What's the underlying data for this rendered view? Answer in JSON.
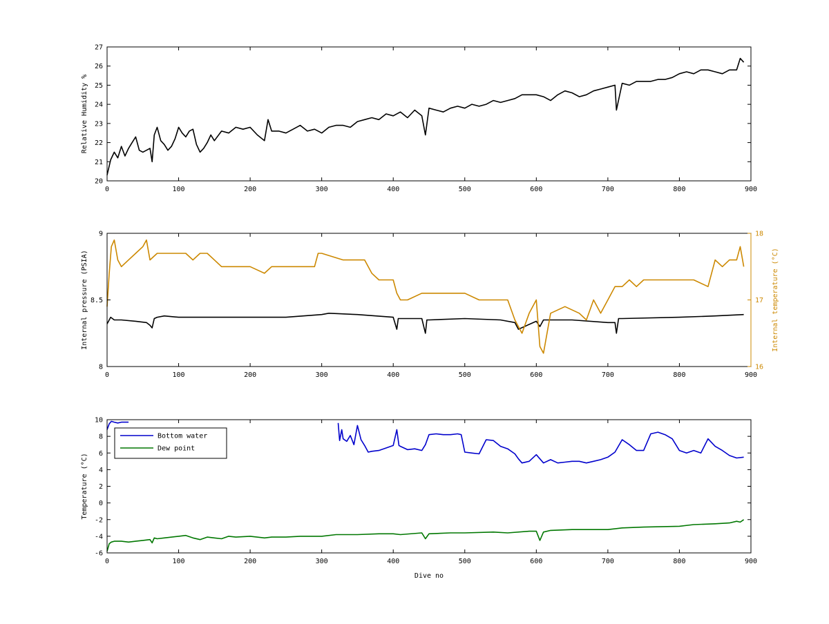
{
  "colors": {
    "black": "#000000",
    "orange": "#cc8800",
    "blue": "#0000cc",
    "green": "#007700"
  },
  "chart_data": [
    {
      "type": "line",
      "ylabel": "Relative Humidity %",
      "xlabel": "",
      "xlim": [
        0,
        900
      ],
      "ylim": [
        20,
        27
      ],
      "xticks": [
        "0",
        "100",
        "200",
        "300",
        "400",
        "500",
        "600",
        "700",
        "800",
        "900"
      ],
      "yticks": [
        "20",
        "21",
        "22",
        "23",
        "24",
        "25",
        "26",
        "27"
      ],
      "grid": false,
      "series": [
        {
          "color": "#000000",
          "x": [
            0,
            5,
            10,
            15,
            20,
            25,
            30,
            35,
            40,
            45,
            50,
            55,
            60,
            63,
            66,
            70,
            75,
            80,
            85,
            90,
            95,
            100,
            105,
            110,
            115,
            120,
            125,
            130,
            135,
            140,
            145,
            150,
            160,
            170,
            180,
            190,
            200,
            210,
            220,
            225,
            230,
            240,
            250,
            260,
            270,
            280,
            290,
            300,
            310,
            320,
            330,
            340,
            350,
            360,
            370,
            380,
            390,
            400,
            410,
            420,
            430,
            440,
            445,
            450,
            460,
            470,
            480,
            490,
            500,
            510,
            520,
            530,
            540,
            550,
            560,
            570,
            580,
            590,
            600,
            610,
            620,
            630,
            640,
            650,
            660,
            670,
            680,
            690,
            700,
            710,
            712,
            720,
            730,
            740,
            750,
            760,
            770,
            780,
            790,
            800,
            810,
            820,
            830,
            840,
            850,
            860,
            870,
            880,
            885,
            890
          ],
          "values": [
            20.3,
            21.1,
            21.5,
            21.2,
            21.8,
            21.3,
            21.7,
            22.0,
            22.3,
            21.6,
            21.5,
            21.6,
            21.7,
            21.0,
            22.4,
            22.8,
            22.1,
            21.9,
            21.6,
            21.8,
            22.2,
            22.8,
            22.5,
            22.3,
            22.6,
            22.7,
            21.9,
            21.5,
            21.7,
            22.0,
            22.4,
            22.1,
            22.6,
            22.5,
            22.8,
            22.7,
            22.8,
            22.4,
            22.1,
            23.2,
            22.6,
            22.6,
            22.5,
            22.7,
            22.9,
            22.6,
            22.7,
            22.5,
            22.8,
            22.9,
            22.9,
            22.8,
            23.1,
            23.2,
            23.3,
            23.2,
            23.5,
            23.4,
            23.6,
            23.3,
            23.7,
            23.4,
            22.4,
            23.8,
            23.7,
            23.6,
            23.8,
            23.9,
            23.8,
            24.0,
            23.9,
            24.0,
            24.2,
            24.1,
            24.2,
            24.3,
            24.5,
            24.5,
            24.5,
            24.4,
            24.2,
            24.5,
            24.7,
            24.6,
            24.4,
            24.5,
            24.7,
            24.8,
            24.9,
            25.0,
            23.7,
            25.1,
            25.0,
            25.2,
            25.2,
            25.2,
            25.3,
            25.3,
            25.4,
            25.6,
            25.7,
            25.6,
            25.8,
            25.8,
            25.7,
            25.6,
            25.8,
            25.8,
            26.4,
            26.2
          ]
        }
      ]
    },
    {
      "type": "line",
      "ylabel": "Internal pressure (PSIA)",
      "y2label": "Internal temperature (°C)",
      "xlabel": "",
      "xlim": [
        0,
        900
      ],
      "ylim": [
        8,
        9
      ],
      "y2lim": [
        16,
        18
      ],
      "xticks": [
        "0",
        "100",
        "200",
        "300",
        "400",
        "500",
        "600",
        "700",
        "800",
        "900"
      ],
      "yticks": [
        "8",
        "8.5",
        "9"
      ],
      "y2ticks": [
        "16",
        "17",
        "18"
      ],
      "grid": false,
      "series": [
        {
          "axis": "left",
          "color": "#000000",
          "x": [
            0,
            5,
            10,
            20,
            40,
            55,
            60,
            63,
            66,
            70,
            80,
            100,
            150,
            200,
            250,
            300,
            310,
            350,
            400,
            405,
            407,
            410,
            440,
            445,
            447,
            450,
            500,
            550,
            570,
            575,
            600,
            605,
            610,
            620,
            650,
            700,
            710,
            712,
            715,
            720,
            800,
            850,
            890
          ],
          "values": [
            8.32,
            8.37,
            8.35,
            8.35,
            8.34,
            8.33,
            8.31,
            8.29,
            8.36,
            8.37,
            8.38,
            8.37,
            8.37,
            8.37,
            8.37,
            8.39,
            8.4,
            8.39,
            8.37,
            8.28,
            8.36,
            8.36,
            8.36,
            8.25,
            8.35,
            8.35,
            8.36,
            8.35,
            8.33,
            8.28,
            8.34,
            8.3,
            8.35,
            8.35,
            8.35,
            8.33,
            8.33,
            8.25,
            8.36,
            8.36,
            8.37,
            8.38,
            8.39
          ]
        },
        {
          "axis": "right",
          "color": "#cc8800",
          "x": [
            0,
            3,
            6,
            10,
            15,
            20,
            30,
            40,
            50,
            55,
            60,
            70,
            80,
            100,
            110,
            120,
            130,
            140,
            150,
            160,
            170,
            180,
            200,
            220,
            230,
            250,
            260,
            270,
            280,
            290,
            295,
            300,
            330,
            350,
            360,
            370,
            380,
            390,
            400,
            405,
            410,
            420,
            440,
            460,
            480,
            500,
            520,
            540,
            560,
            570,
            575,
            580,
            590,
            600,
            605,
            610,
            620,
            640,
            660,
            670,
            680,
            690,
            700,
            710,
            720,
            730,
            740,
            750,
            760,
            780,
            800,
            820,
            840,
            850,
            860,
            870,
            880,
            885,
            890
          ],
          "values": [
            16.9,
            17.4,
            17.8,
            17.9,
            17.6,
            17.5,
            17.6,
            17.7,
            17.8,
            17.9,
            17.6,
            17.7,
            17.7,
            17.7,
            17.7,
            17.6,
            17.7,
            17.7,
            17.6,
            17.5,
            17.5,
            17.5,
            17.5,
            17.4,
            17.5,
            17.5,
            17.5,
            17.5,
            17.5,
            17.5,
            17.7,
            17.7,
            17.6,
            17.6,
            17.6,
            17.4,
            17.3,
            17.3,
            17.3,
            17.1,
            17.0,
            17.0,
            17.1,
            17.1,
            17.1,
            17.1,
            17.0,
            17.0,
            17.0,
            16.7,
            16.6,
            16.5,
            16.8,
            17.0,
            16.3,
            16.2,
            16.8,
            16.9,
            16.8,
            16.7,
            17.0,
            16.8,
            17.0,
            17.2,
            17.2,
            17.3,
            17.2,
            17.3,
            17.3,
            17.3,
            17.3,
            17.3,
            17.2,
            17.6,
            17.5,
            17.6,
            17.6,
            17.8,
            17.5
          ]
        }
      ]
    },
    {
      "type": "line",
      "ylabel": "Temperature (°C)",
      "xlabel": "Dive no",
      "xlim": [
        0,
        900
      ],
      "ylim": [
        -6,
        10
      ],
      "xticks": [
        "0",
        "100",
        "200",
        "300",
        "400",
        "500",
        "600",
        "700",
        "800",
        "900"
      ],
      "yticks": [
        "-6",
        "-4",
        "-2",
        "0",
        "2",
        "4",
        "6",
        "8",
        "10"
      ],
      "grid": false,
      "legend": "top-left",
      "series": [
        {
          "name": "Bottom water",
          "color": "#0000cc",
          "x": [
            0,
            3,
            6,
            10,
            15,
            20,
            25,
            30
          ],
          "values": [
            8.8,
            9.5,
            9.8,
            9.7,
            9.6,
            9.7,
            9.7,
            9.7
          ]
        },
        {
          "name": "Bottom water",
          "color": "#0000cc",
          "x": [
            323,
            325,
            328,
            330,
            335,
            340,
            345,
            350,
            355,
            360,
            365,
            370,
            380,
            390,
            400,
            405,
            408,
            410,
            420,
            430,
            440,
            445,
            450,
            460,
            470,
            480,
            490,
            495,
            500,
            510,
            520,
            530,
            540,
            550,
            560,
            570,
            575,
            580,
            590,
            600,
            610,
            620,
            630,
            640,
            650,
            660,
            670,
            680,
            690,
            700,
            710,
            720,
            730,
            740,
            750,
            760,
            770,
            780,
            790,
            800,
            810,
            820,
            830,
            840,
            850,
            860,
            870,
            880,
            890
          ],
          "values": [
            9.6,
            7.5,
            8.8,
            7.7,
            7.4,
            8.1,
            7.0,
            9.3,
            7.6,
            6.9,
            6.1,
            6.2,
            6.3,
            6.6,
            6.9,
            8.8,
            6.9,
            6.8,
            6.4,
            6.5,
            6.3,
            7.0,
            8.2,
            8.3,
            8.2,
            8.2,
            8.3,
            8.2,
            6.1,
            6.0,
            5.9,
            7.6,
            7.5,
            6.8,
            6.5,
            5.9,
            5.3,
            4.8,
            5.0,
            5.8,
            4.8,
            5.2,
            4.8,
            4.9,
            5.0,
            5.0,
            4.8,
            5.0,
            5.2,
            5.5,
            6.1,
            7.6,
            7.0,
            6.3,
            6.3,
            8.3,
            8.5,
            8.2,
            7.7,
            6.3,
            6.0,
            6.3,
            6.0,
            7.7,
            6.8,
            6.3,
            5.7,
            5.4,
            5.5
          ]
        },
        {
          "name": "Dew point",
          "color": "#007700",
          "x": [
            0,
            3,
            6,
            10,
            20,
            30,
            40,
            50,
            60,
            63,
            66,
            70,
            80,
            100,
            110,
            120,
            130,
            140,
            150,
            160,
            170,
            180,
            200,
            220,
            230,
            250,
            270,
            300,
            320,
            350,
            380,
            400,
            410,
            440,
            445,
            450,
            480,
            500,
            540,
            560,
            590,
            600,
            605,
            610,
            620,
            650,
            700,
            720,
            750,
            800,
            820,
            850,
            870,
            880,
            885,
            890
          ],
          "values": [
            -5.8,
            -4.9,
            -4.7,
            -4.6,
            -4.6,
            -4.7,
            -4.6,
            -4.5,
            -4.4,
            -4.8,
            -4.2,
            -4.3,
            -4.2,
            -4.0,
            -3.9,
            -4.2,
            -4.4,
            -4.1,
            -4.2,
            -4.3,
            -4.0,
            -4.1,
            -4.0,
            -4.2,
            -4.1,
            -4.1,
            -4.0,
            -4.0,
            -3.8,
            -3.8,
            -3.7,
            -3.7,
            -3.8,
            -3.6,
            -4.3,
            -3.7,
            -3.6,
            -3.6,
            -3.5,
            -3.6,
            -3.4,
            -3.4,
            -4.5,
            -3.5,
            -3.3,
            -3.2,
            -3.2,
            -3.0,
            -2.9,
            -2.8,
            -2.6,
            -2.5,
            -2.4,
            -2.2,
            -2.3,
            -2.0
          ]
        }
      ]
    }
  ]
}
